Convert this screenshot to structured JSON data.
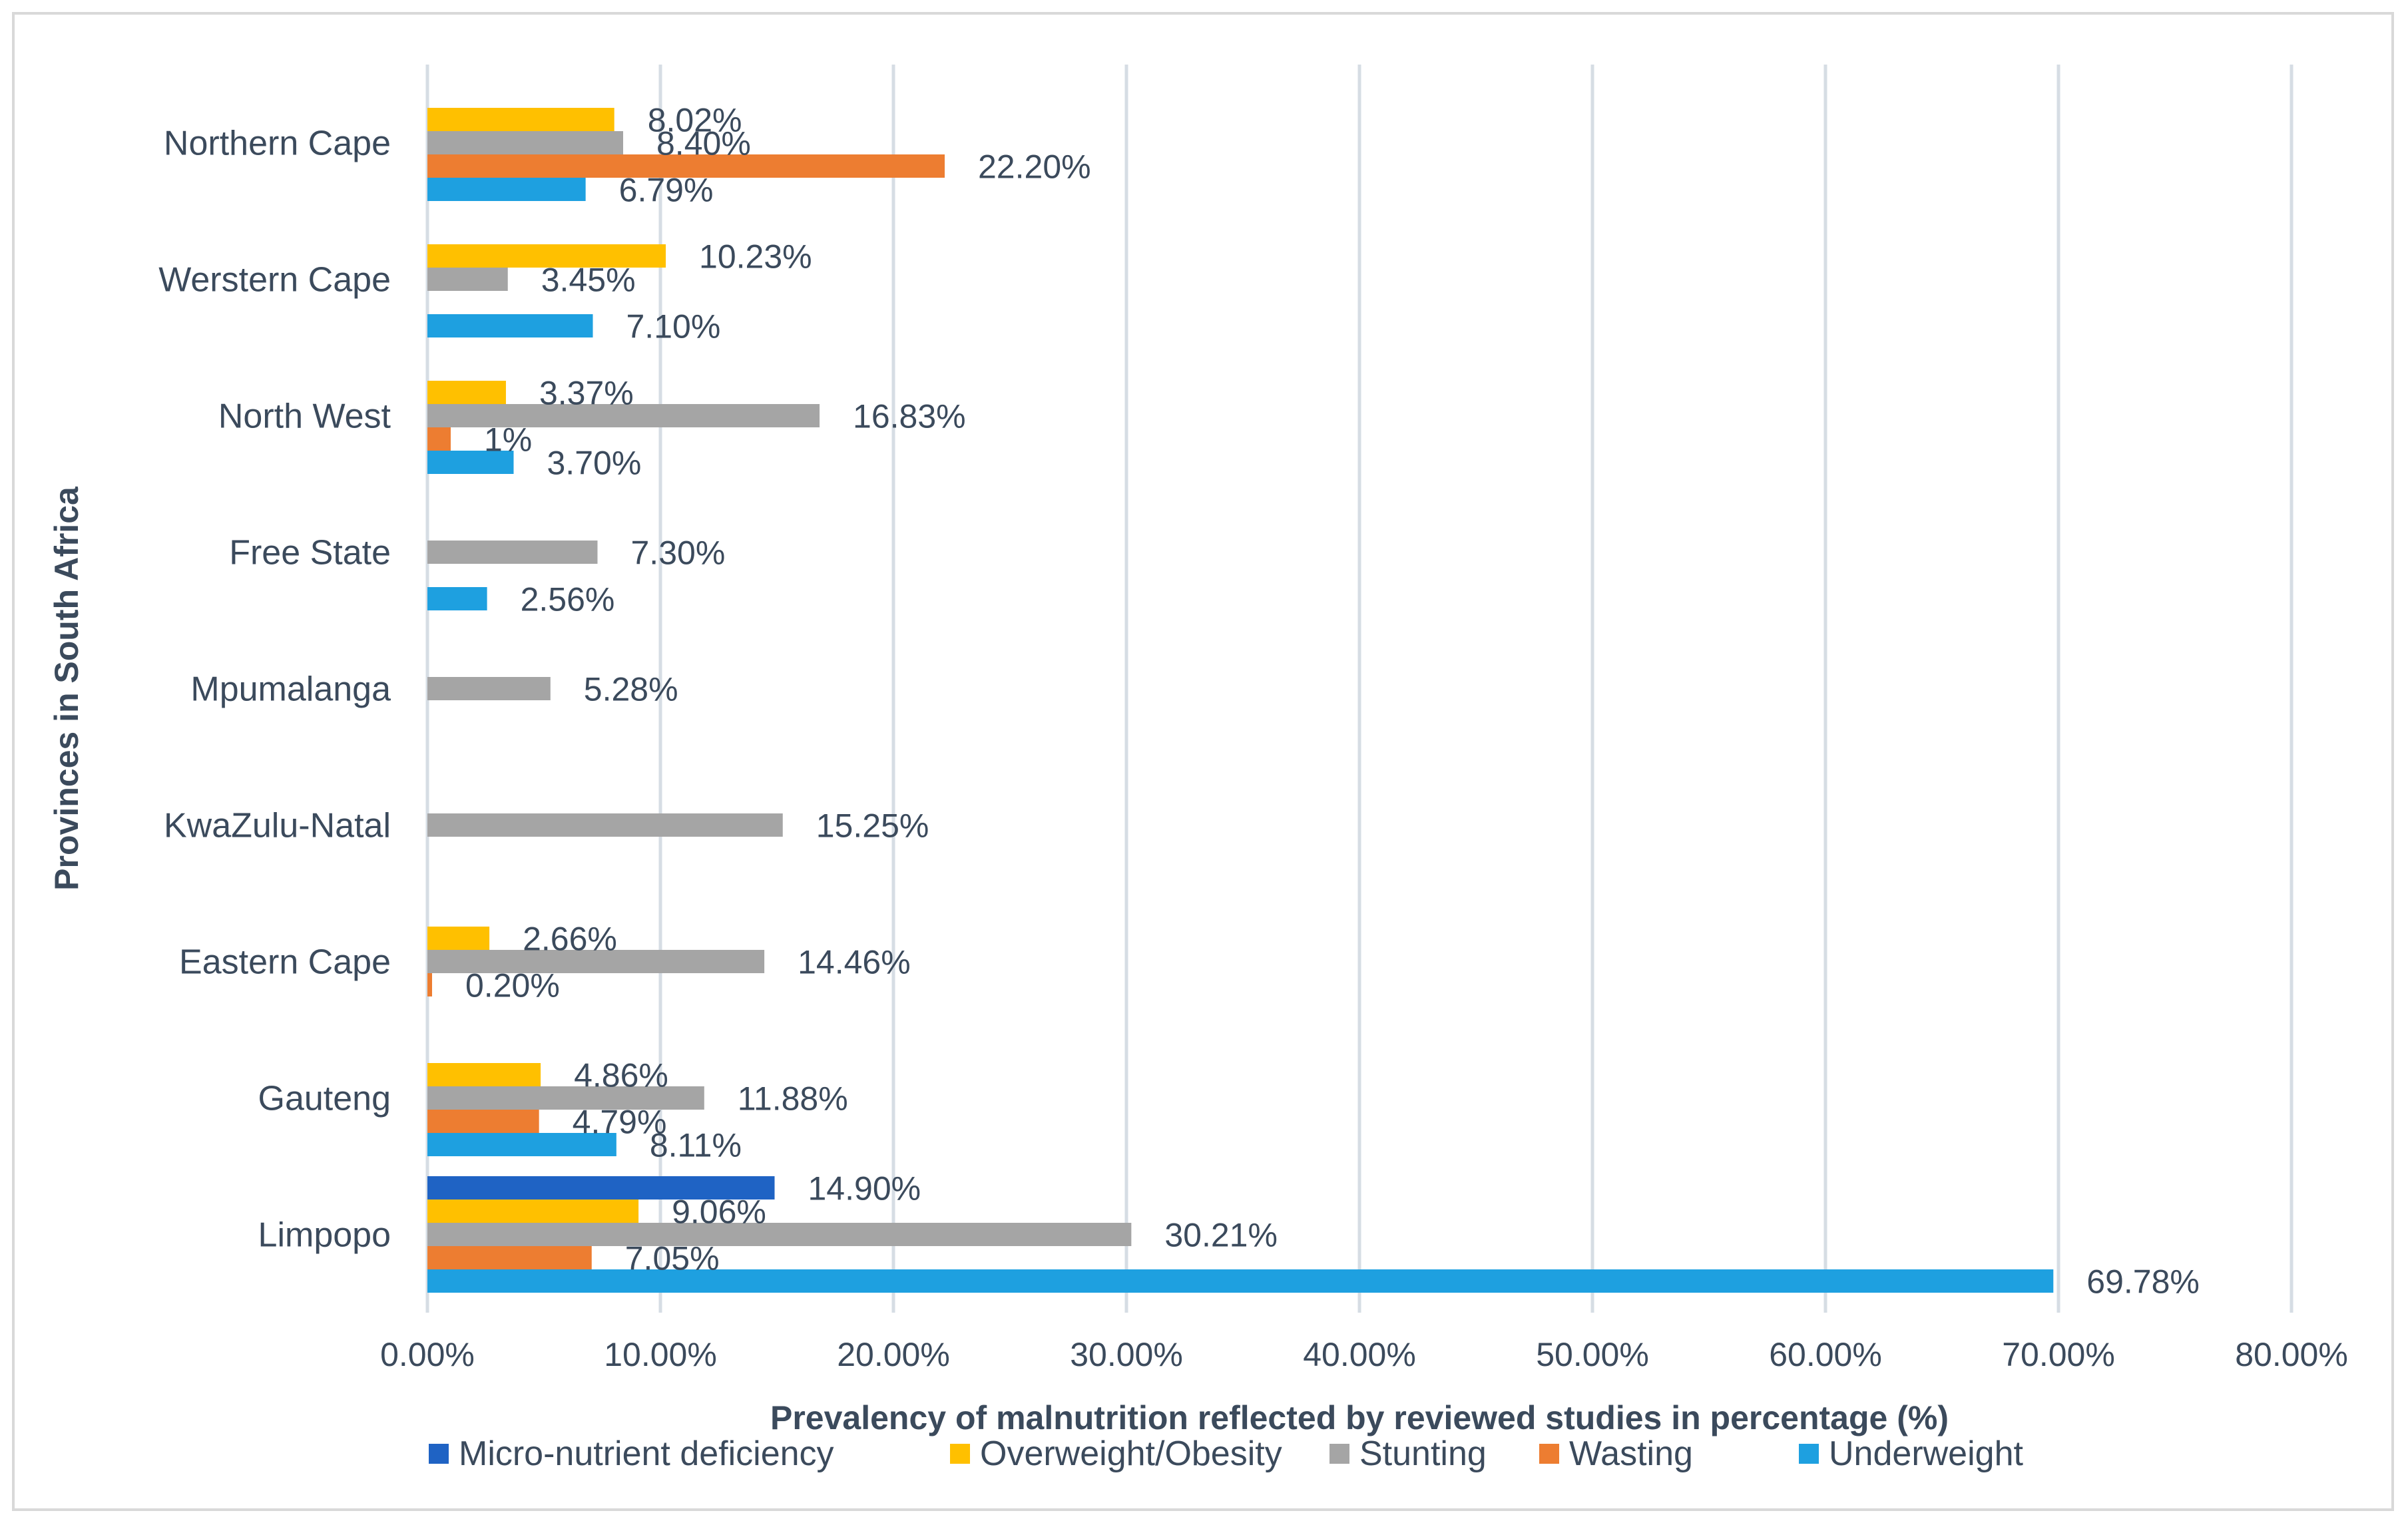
{
  "chart_data": {
    "type": "bar",
    "orientation": "horizontal",
    "title": "",
    "xlabel": "Prevalency of malnutrition reflected by reviewed studies in percentage (%)",
    "ylabel": "Provinces in South Africa",
    "xlim": [
      0,
      80
    ],
    "x_ticks": [
      "0.00%",
      "10.00%",
      "20.00%",
      "30.00%",
      "40.00%",
      "50.00%",
      "60.00%",
      "70.00%",
      "80.00%"
    ],
    "grid": true,
    "legend_position": "bottom",
    "categories": [
      "Northern Cape",
      "Werstern Cape",
      "North West",
      "Free State",
      "Mpumalanga",
      "KwaZulu-Natal",
      "Eastern Cape",
      "Gauteng",
      "Limpopo"
    ],
    "series": [
      {
        "name": "Micro-nutrient deficiency",
        "color": "#1f63c4",
        "values": [
          null,
          null,
          null,
          null,
          null,
          null,
          null,
          null,
          14.9
        ],
        "labels": [
          null,
          null,
          null,
          null,
          null,
          null,
          null,
          null,
          "14.90%"
        ]
      },
      {
        "name": "Overweight/Obesity",
        "color": "#ffc000",
        "values": [
          8.02,
          10.23,
          3.37,
          null,
          null,
          null,
          2.66,
          4.86,
          9.06
        ],
        "labels": [
          "8.02%",
          "10.23%",
          "3.37%",
          null,
          null,
          null,
          "2.66%",
          "4.86%",
          "9.06%"
        ]
      },
      {
        "name": "Stunting",
        "color": "#a5a5a5",
        "values": [
          8.4,
          3.45,
          16.83,
          7.3,
          5.28,
          15.25,
          14.46,
          11.88,
          30.21
        ],
        "labels": [
          "8.40%",
          "3.45%",
          "16.83%",
          "7.30%",
          "5.28%",
          "15.25%",
          "14.46%",
          "11.88%",
          "30.21%"
        ]
      },
      {
        "name": "Wasting",
        "color": "#ed7d31",
        "values": [
          22.2,
          null,
          1,
          null,
          null,
          null,
          0.2,
          4.79,
          7.05
        ],
        "labels": [
          "22.20%",
          null,
          "1%",
          null,
          null,
          null,
          "0.20%",
          "4.79%",
          "7.05%"
        ]
      },
      {
        "name": "Underweight",
        "color": "#1ea0e0",
        "values": [
          6.79,
          7.1,
          3.7,
          2.56,
          null,
          null,
          null,
          8.11,
          69.78
        ],
        "labels": [
          "6.79%",
          "7.10%",
          "3.70%",
          "2.56%",
          null,
          null,
          null,
          "8.11%",
          "69.78%"
        ]
      }
    ]
  }
}
